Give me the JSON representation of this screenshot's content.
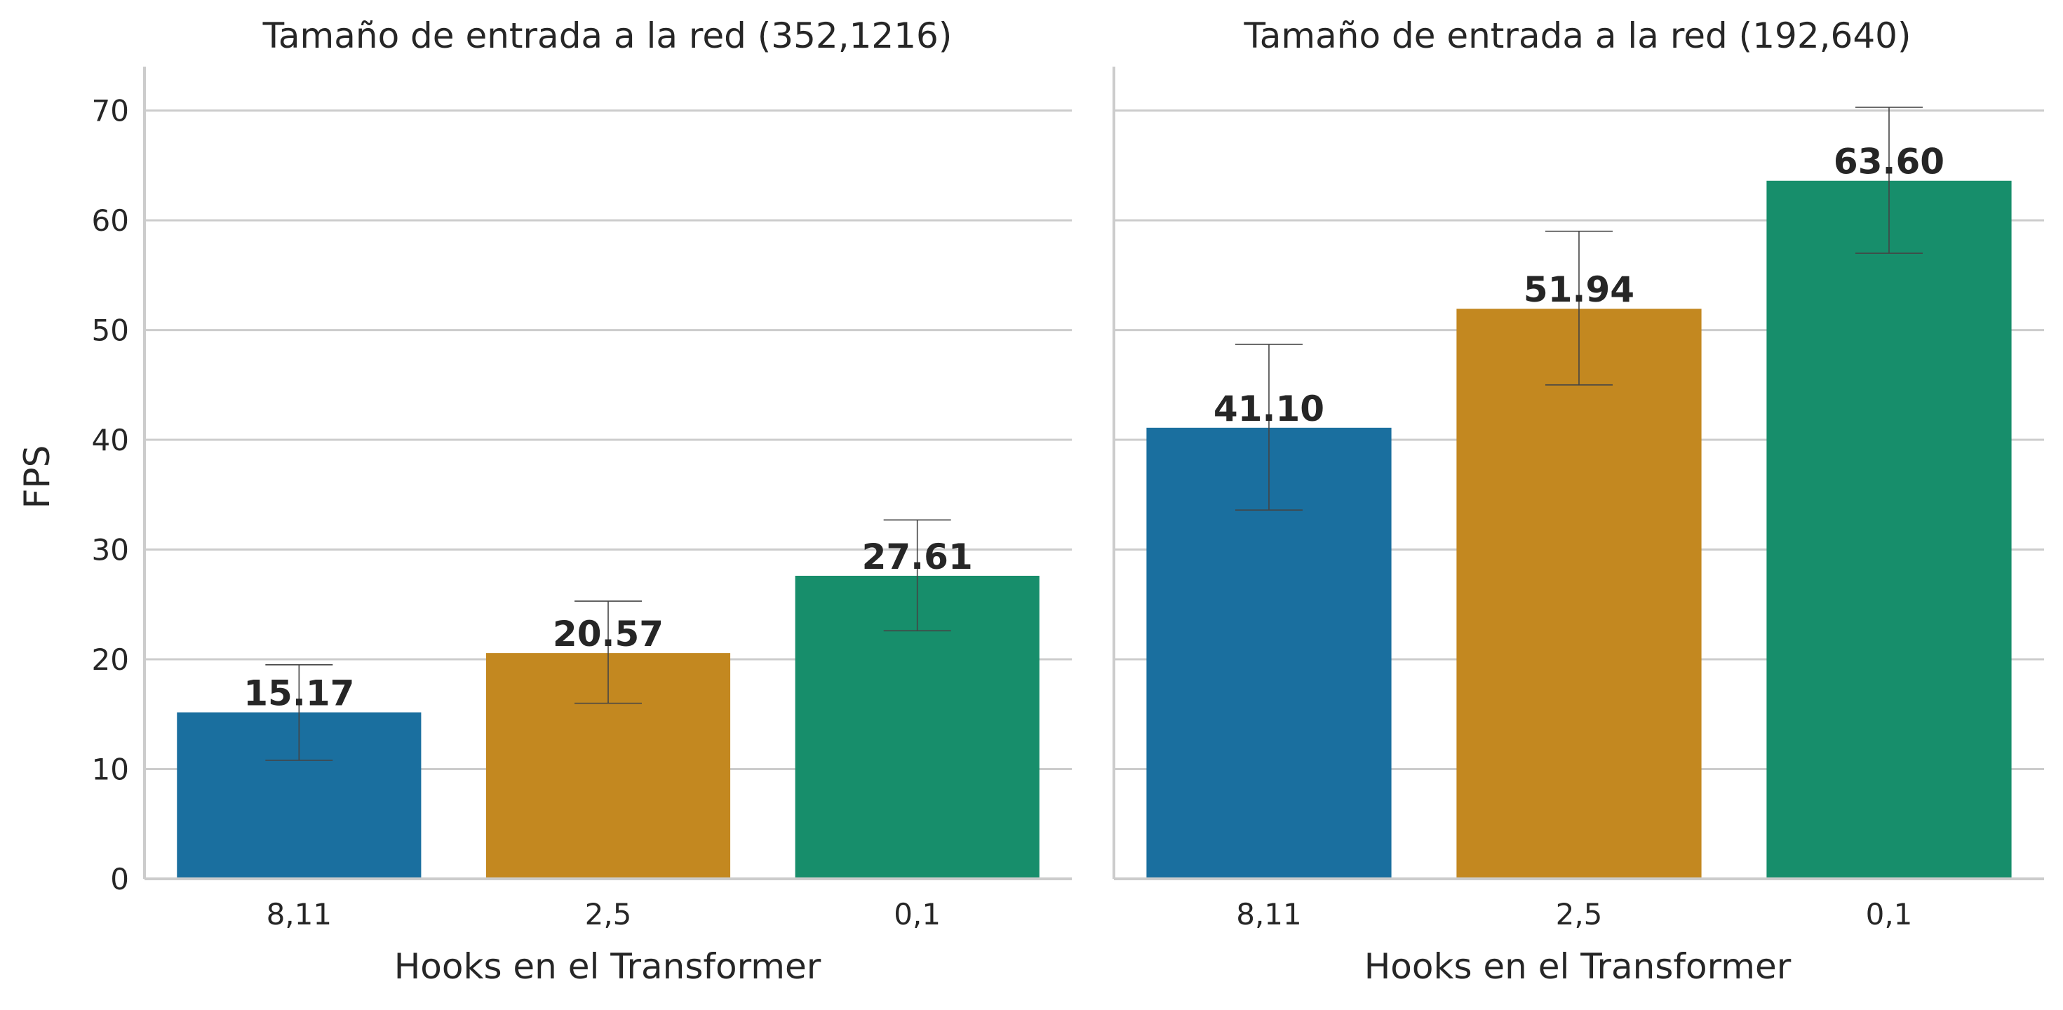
{
  "chart_data": [
    {
      "type": "bar",
      "title": "Tamaño de entrada a la red (352,1216)",
      "xlabel": "Hooks en el Transformer",
      "ylabel": "FPS",
      "categories": [
        "8,11",
        "2,5",
        "0,1"
      ],
      "values": [
        15.17,
        20.57,
        27.61
      ],
      "value_labels": [
        "15.17",
        "20.57",
        "27.61"
      ],
      "error_low": [
        10.8,
        16.0,
        22.6
      ],
      "error_high": [
        19.5,
        25.3,
        32.7
      ],
      "colors": [
        "#1a6f9f",
        "#c38820",
        "#178e6b"
      ],
      "ylim": [
        0,
        74
      ],
      "yticks": [
        0,
        10,
        20,
        30,
        40,
        50,
        60,
        70
      ],
      "grid": true
    },
    {
      "type": "bar",
      "title": "Tamaño de entrada a la red (192,640)",
      "xlabel": "Hooks en el Transformer",
      "ylabel": "",
      "categories": [
        "8,11",
        "2,5",
        "0,1"
      ],
      "values": [
        41.1,
        51.94,
        63.6
      ],
      "value_labels": [
        "41.10",
        "51.94",
        "63.60"
      ],
      "error_low": [
        33.6,
        45.0,
        57.0
      ],
      "error_high": [
        48.7,
        59.0,
        70.3
      ],
      "colors": [
        "#1a6f9f",
        "#c38820",
        "#178e6b"
      ],
      "ylim": [
        0,
        74
      ],
      "yticks": [
        0,
        10,
        20,
        30,
        40,
        50,
        60,
        70
      ],
      "grid": true
    }
  ]
}
